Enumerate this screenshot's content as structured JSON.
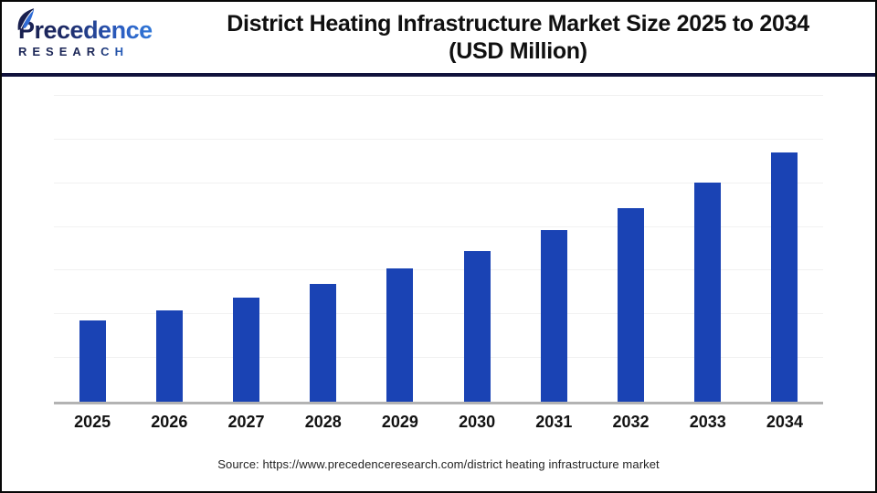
{
  "logo": {
    "name": "Precedence",
    "subname": "RESEARCH"
  },
  "header": {
    "title_line1": "District Heating Infrastructure Market Size 2025 to 2034",
    "title_line2": "(USD Million)"
  },
  "footer": {
    "source": "Source: https://www.precedenceresearch.com/district heating infrastructure market"
  },
  "colors": {
    "bar": "#1a43b4",
    "gridline": "#f1f1f1",
    "axis": "#b3b3b3",
    "header_rule": "#11123c",
    "title_text": "#101010",
    "logo_navy": "#1b2657",
    "logo_blue": "#2e6bd6"
  },
  "chart_data": {
    "type": "bar",
    "title": "District Heating Infrastructure Market Size 2025 to 2034 (USD Million)",
    "categories": [
      "2025",
      "2026",
      "2027",
      "2028",
      "2029",
      "2030",
      "2031",
      "2032",
      "2033",
      "2034"
    ],
    "values": [
      90,
      101,
      115,
      130,
      147,
      167,
      190,
      214,
      242,
      275
    ],
    "value_note": "y-axis is unlabeled; values are relative bar heights read from the image (approx. 13% year-over-year growth)",
    "ylim": [
      0,
      335
    ],
    "xlabel": "",
    "ylabel": "",
    "grid": "horizontal gridlines only, unlabeled",
    "gridline_count": 7,
    "gridline_step": 47.86,
    "legend": "none",
    "bar_color": "#1a43b4"
  }
}
